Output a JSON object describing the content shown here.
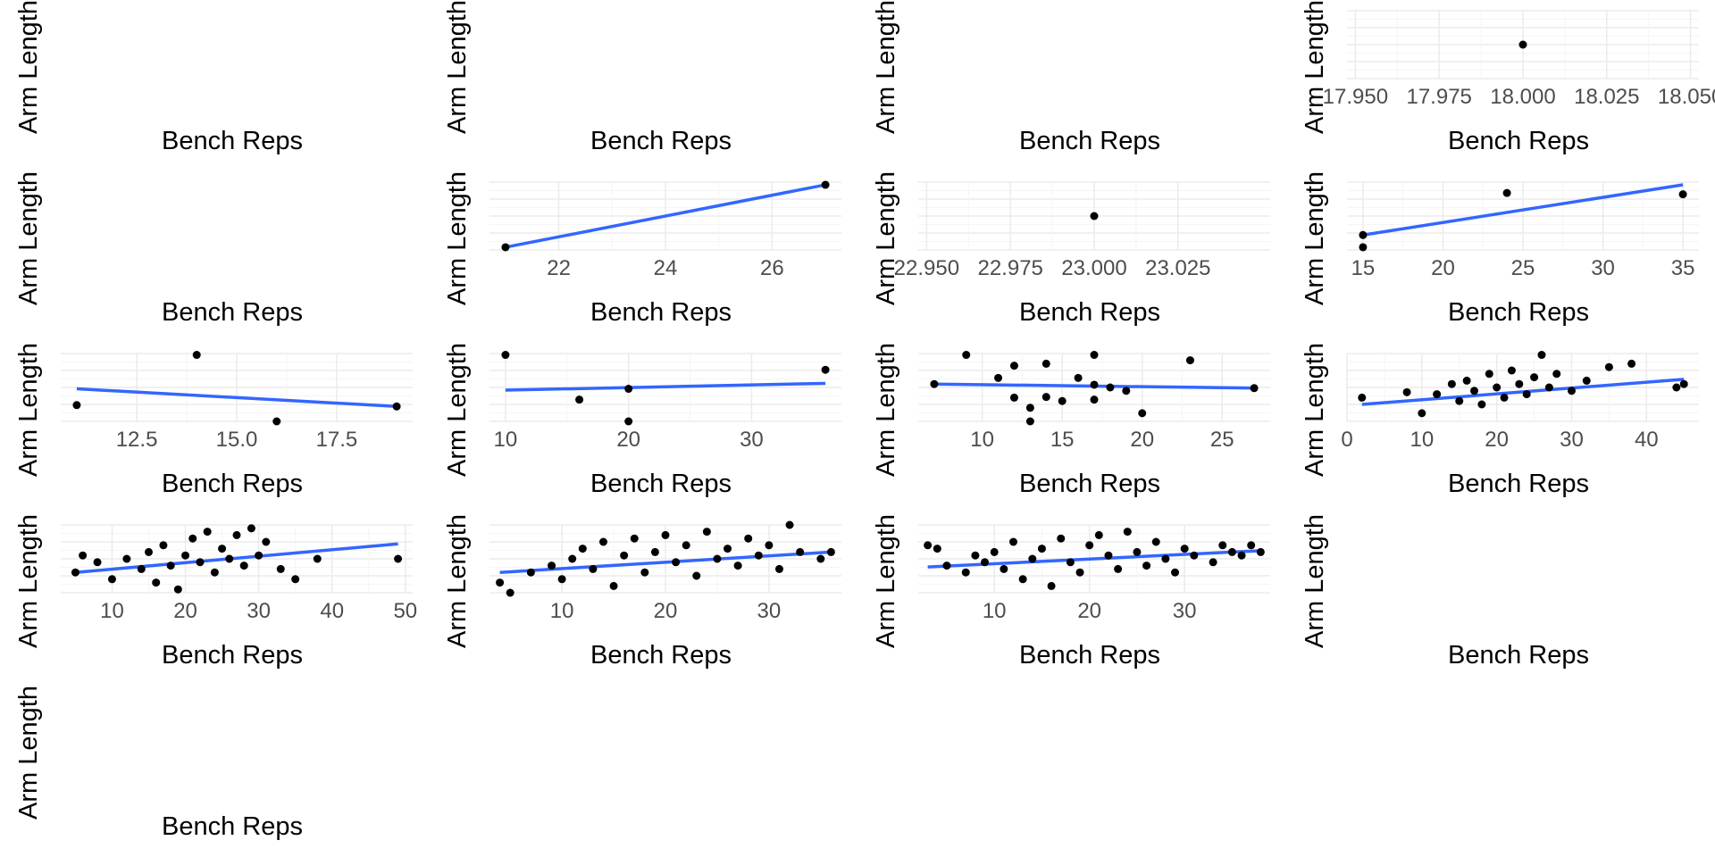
{
  "figure": {
    "title": "",
    "colors": {
      "point": "#000000",
      "trend_line": "#3366FF",
      "grid_major": "#EBEBEB",
      "grid_minor": "#F5F5F5",
      "tick_text": "#4D4D4D",
      "background": "#FFFFFF"
    }
  },
  "chart_data": [
    {
      "type": "scatter",
      "xlabel": "Bench Reps",
      "ylabel": "Arm Length",
      "points": [],
      "trend": null,
      "x_ticks": [],
      "xlim": null,
      "grid": false
    },
    {
      "type": "scatter",
      "xlabel": "Bench Reps",
      "ylabel": "Arm Length",
      "points": [],
      "trend": null,
      "x_ticks": [],
      "xlim": null,
      "grid": false
    },
    {
      "type": "scatter",
      "xlabel": "Bench Reps",
      "ylabel": "Arm Length",
      "points": [],
      "trend": null,
      "x_ticks": [],
      "xlim": null,
      "grid": false
    },
    {
      "type": "scatter",
      "xlabel": "Bench Reps",
      "ylabel": "Arm Length",
      "points": [
        [
          18.0,
          0.5
        ]
      ],
      "trend": null,
      "x_ticks": [
        17.95,
        17.975,
        18.0,
        18.025,
        18.05
      ],
      "x_tick_labels": [
        "17.950",
        "17.975",
        "18.000",
        "18.025",
        "18.050"
      ],
      "xlim": [
        17.9475,
        18.0525
      ],
      "ylim": [
        0,
        1
      ],
      "grid": true
    },
    {
      "type": "scatter",
      "xlabel": "Bench Reps",
      "ylabel": "Arm Length",
      "points": [],
      "trend": null,
      "x_ticks": [],
      "xlim": null,
      "grid": false
    },
    {
      "type": "scatter",
      "xlabel": "Bench Reps",
      "ylabel": "Arm Length",
      "points": [
        [
          21,
          0.04
        ],
        [
          27,
          0.96
        ]
      ],
      "trend": [
        [
          21,
          0.04
        ],
        [
          27,
          0.96
        ]
      ],
      "x_ticks": [
        22,
        24,
        26
      ],
      "xlim": [
        20.7,
        27.3
      ],
      "ylim": [
        0,
        1
      ],
      "grid": true
    },
    {
      "type": "scatter",
      "xlabel": "Bench Reps",
      "ylabel": "Arm Length",
      "points": [
        [
          23.0,
          0.5
        ]
      ],
      "trend": null,
      "x_ticks": [
        22.95,
        22.975,
        23.0,
        23.025
      ],
      "x_tick_labels": [
        "22.950",
        "22.975",
        "23.000",
        "23.025"
      ],
      "xlim": [
        22.9475,
        23.0525
      ],
      "ylim": [
        0,
        1
      ],
      "grid": true
    },
    {
      "type": "scatter",
      "xlabel": "Bench Reps",
      "ylabel": "Arm Length",
      "points": [
        [
          15,
          0.22
        ],
        [
          15,
          0.04
        ],
        [
          24,
          0.84
        ],
        [
          35,
          0.82
        ]
      ],
      "trend": [
        [
          15,
          0.22
        ],
        [
          35,
          0.96
        ]
      ],
      "x_ticks": [
        15,
        20,
        25,
        30,
        35
      ],
      "xlim": [
        14.0,
        36.0
      ],
      "ylim": [
        0,
        1
      ],
      "grid": true
    },
    {
      "type": "scatter",
      "xlabel": "Bench Reps",
      "ylabel": "Arm Length",
      "points": [
        [
          11,
          0.24
        ],
        [
          14,
          0.98
        ],
        [
          16,
          0.0
        ],
        [
          19,
          0.22
        ]
      ],
      "trend": [
        [
          11,
          0.48
        ],
        [
          19,
          0.22
        ]
      ],
      "x_ticks": [
        12.5,
        15.0,
        17.5
      ],
      "x_tick_labels": [
        "12.5",
        "15.0",
        "17.5"
      ],
      "xlim": [
        10.6,
        19.4
      ],
      "ylim": [
        0,
        1
      ],
      "grid": true
    },
    {
      "type": "scatter",
      "xlabel": "Bench Reps",
      "ylabel": "Arm Length",
      "points": [
        [
          10,
          0.98
        ],
        [
          16,
          0.32
        ],
        [
          20,
          0.48
        ],
        [
          20,
          0.0
        ],
        [
          36,
          0.76
        ]
      ],
      "trend": [
        [
          10,
          0.46
        ],
        [
          36,
          0.56
        ]
      ],
      "x_ticks": [
        10,
        20,
        30
      ],
      "xlim": [
        8.7,
        37.3
      ],
      "ylim": [
        0,
        1
      ],
      "grid": true
    },
    {
      "type": "scatter",
      "xlabel": "Bench Reps",
      "ylabel": "Arm Length",
      "points": [
        [
          7,
          0.55
        ],
        [
          9,
          0.98
        ],
        [
          11,
          0.64
        ],
        [
          12,
          0.82
        ],
        [
          12,
          0.35
        ],
        [
          13,
          0.2
        ],
        [
          13,
          0.0
        ],
        [
          14,
          0.85
        ],
        [
          14,
          0.36
        ],
        [
          15,
          0.3
        ],
        [
          16,
          0.64
        ],
        [
          17,
          0.98
        ],
        [
          17,
          0.54
        ],
        [
          17,
          0.32
        ],
        [
          18,
          0.5
        ],
        [
          19,
          0.45
        ],
        [
          20,
          0.12
        ],
        [
          23,
          0.9
        ],
        [
          27,
          0.49
        ]
      ],
      "trend": [
        [
          7,
          0.55
        ],
        [
          27,
          0.49
        ]
      ],
      "x_ticks": [
        10,
        15,
        20,
        25
      ],
      "xlim": [
        6.0,
        28.0
      ],
      "ylim": [
        0,
        1
      ],
      "grid": true
    },
    {
      "type": "scatter",
      "xlabel": "Bench Reps",
      "ylabel": "Arm Length",
      "points": [
        [
          2,
          0.35
        ],
        [
          8,
          0.43
        ],
        [
          10,
          0.12
        ],
        [
          12,
          0.4
        ],
        [
          14,
          0.55
        ],
        [
          15,
          0.3
        ],
        [
          16,
          0.6
        ],
        [
          17,
          0.45
        ],
        [
          18,
          0.25
        ],
        [
          19,
          0.7
        ],
        [
          20,
          0.5
        ],
        [
          21,
          0.35
        ],
        [
          22,
          0.75
        ],
        [
          23,
          0.55
        ],
        [
          24,
          0.4
        ],
        [
          25,
          0.65
        ],
        [
          26,
          0.98
        ],
        [
          27,
          0.5
        ],
        [
          28,
          0.7
        ],
        [
          30,
          0.45
        ],
        [
          32,
          0.6
        ],
        [
          35,
          0.8
        ],
        [
          38,
          0.85
        ],
        [
          44,
          0.5
        ],
        [
          45,
          0.55
        ]
      ],
      "trend": [
        [
          2,
          0.25
        ],
        [
          45,
          0.62
        ]
      ],
      "x_ticks": [
        0,
        10,
        20,
        30,
        40
      ],
      "xlim": [
        0,
        47
      ],
      "ylim": [
        0,
        1
      ],
      "grid": true
    },
    {
      "type": "scatter",
      "xlabel": "Bench Reps",
      "ylabel": "Arm Length",
      "points": [
        [
          5,
          0.3
        ],
        [
          6,
          0.55
        ],
        [
          8,
          0.45
        ],
        [
          10,
          0.2
        ],
        [
          12,
          0.5
        ],
        [
          14,
          0.35
        ],
        [
          15,
          0.6
        ],
        [
          16,
          0.15
        ],
        [
          17,
          0.7
        ],
        [
          18,
          0.4
        ],
        [
          19,
          0.05
        ],
        [
          20,
          0.55
        ],
        [
          21,
          0.8
        ],
        [
          22,
          0.45
        ],
        [
          23,
          0.9
        ],
        [
          24,
          0.3
        ],
        [
          25,
          0.65
        ],
        [
          26,
          0.5
        ],
        [
          27,
          0.85
        ],
        [
          28,
          0.4
        ],
        [
          29,
          0.95
        ],
        [
          30,
          0.55
        ],
        [
          31,
          0.75
        ],
        [
          33,
          0.35
        ],
        [
          35,
          0.2
        ],
        [
          38,
          0.5
        ],
        [
          49,
          0.5
        ]
      ],
      "trend": [
        [
          5,
          0.3
        ],
        [
          49,
          0.72
        ]
      ],
      "x_ticks": [
        10,
        20,
        30,
        40,
        50
      ],
      "xlim": [
        3,
        51
      ],
      "ylim": [
        0,
        1
      ],
      "grid": true
    },
    {
      "type": "scatter",
      "xlabel": "Bench Reps",
      "ylabel": "Arm Length",
      "points": [
        [
          4,
          0.15
        ],
        [
          5,
          0.0
        ],
        [
          7,
          0.3
        ],
        [
          9,
          0.4
        ],
        [
          10,
          0.2
        ],
        [
          11,
          0.5
        ],
        [
          12,
          0.65
        ],
        [
          13,
          0.35
        ],
        [
          14,
          0.75
        ],
        [
          15,
          0.1
        ],
        [
          16,
          0.55
        ],
        [
          17,
          0.8
        ],
        [
          18,
          0.3
        ],
        [
          19,
          0.6
        ],
        [
          20,
          0.85
        ],
        [
          21,
          0.45
        ],
        [
          22,
          0.7
        ],
        [
          23,
          0.25
        ],
        [
          24,
          0.9
        ],
        [
          25,
          0.5
        ],
        [
          26,
          0.65
        ],
        [
          27,
          0.4
        ],
        [
          28,
          0.8
        ],
        [
          29,
          0.55
        ],
        [
          30,
          0.7
        ],
        [
          31,
          0.35
        ],
        [
          32,
          1.0
        ],
        [
          33,
          0.6
        ],
        [
          35,
          0.5
        ],
        [
          36,
          0.6
        ]
      ],
      "trend": [
        [
          4,
          0.3
        ],
        [
          36,
          0.6
        ]
      ],
      "x_ticks": [
        10,
        20,
        30
      ],
      "xlim": [
        3,
        37
      ],
      "ylim": [
        0,
        1
      ],
      "grid": true
    },
    {
      "type": "scatter",
      "xlabel": "Bench Reps",
      "ylabel": "Arm Length",
      "points": [
        [
          3,
          0.7
        ],
        [
          4,
          0.65
        ],
        [
          5,
          0.4
        ],
        [
          7,
          0.3
        ],
        [
          8,
          0.55
        ],
        [
          9,
          0.45
        ],
        [
          10,
          0.6
        ],
        [
          11,
          0.35
        ],
        [
          12,
          0.75
        ],
        [
          13,
          0.2
        ],
        [
          14,
          0.5
        ],
        [
          15,
          0.65
        ],
        [
          16,
          0.1
        ],
        [
          17,
          0.8
        ],
        [
          18,
          0.45
        ],
        [
          19,
          0.3
        ],
        [
          20,
          0.7
        ],
        [
          21,
          0.85
        ],
        [
          22,
          0.55
        ],
        [
          23,
          0.35
        ],
        [
          24,
          0.9
        ],
        [
          25,
          0.6
        ],
        [
          26,
          0.4
        ],
        [
          27,
          0.75
        ],
        [
          28,
          0.5
        ],
        [
          29,
          0.3
        ],
        [
          30,
          0.65
        ],
        [
          31,
          0.55
        ],
        [
          33,
          0.45
        ],
        [
          34,
          0.7
        ],
        [
          35,
          0.6
        ],
        [
          36,
          0.55
        ],
        [
          37,
          0.7
        ],
        [
          38,
          0.6
        ]
      ],
      "trend": [
        [
          3,
          0.38
        ],
        [
          38,
          0.62
        ]
      ],
      "x_ticks": [
        10,
        20,
        30
      ],
      "xlim": [
        2,
        39
      ],
      "ylim": [
        0,
        1
      ],
      "grid": true
    },
    {
      "type": "scatter",
      "xlabel": "Bench Reps",
      "ylabel": "Arm Length",
      "points": [],
      "trend": null,
      "x_ticks": [],
      "xlim": null,
      "grid": false
    },
    {
      "type": "scatter",
      "xlabel": "Bench Reps",
      "ylabel": "Arm Length",
      "points": [],
      "trend": null,
      "x_ticks": [],
      "xlim": null,
      "grid": false
    }
  ]
}
